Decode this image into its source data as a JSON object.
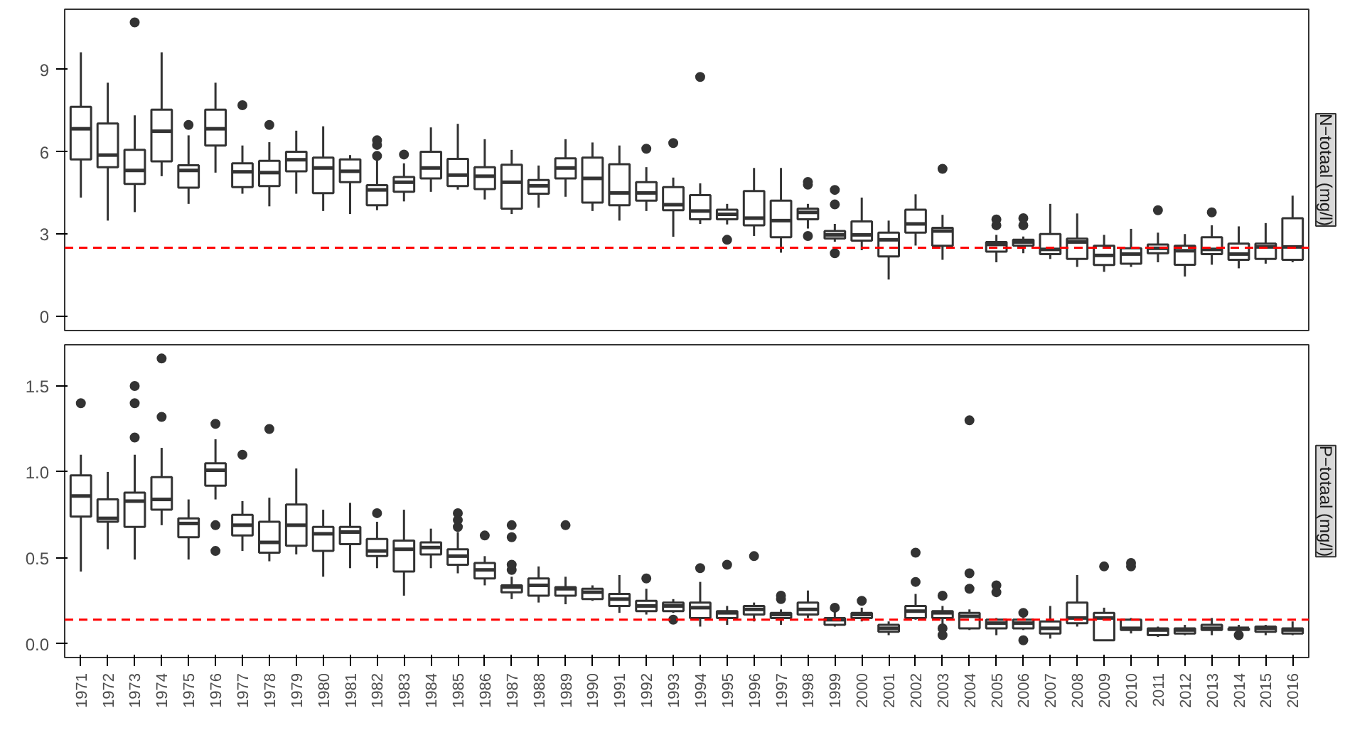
{
  "chart_data": [
    {
      "type": "box",
      "title": "N−totaal (mg/l)",
      "tick_labels": "y",
      "ylim": [
        -0.52,
        11.2
      ],
      "yticks": [
        0,
        3,
        6,
        9
      ],
      "categories": [
        "1971",
        "1972",
        "1973",
        "1974",
        "1975",
        "1976",
        "1977",
        "1978",
        "1979",
        "1980",
        "1981",
        "1982",
        "1983",
        "1984",
        "1985",
        "1986",
        "1987",
        "1988",
        "1989",
        "1990",
        "1991",
        "1992",
        "1993",
        "1994",
        "1995",
        "1996",
        "1997",
        "1998",
        "1999",
        "2000",
        "2001",
        "2002",
        "2003",
        "2004",
        "2005",
        "2006",
        "2007",
        "2008",
        "2009",
        "2010",
        "2011",
        "2012",
        "2013",
        "2014",
        "2015",
        "2016"
      ],
      "ref_lines": [
        {
          "axis": "y",
          "value": 2.5,
          "color": "#ff0000",
          "line_style": "dashed"
        }
      ],
      "boxes": [
        {
          "low": 4.33,
          "q1": 5.72,
          "median": 6.84,
          "q3": 7.64,
          "high": 9.63
        },
        {
          "low": 3.49,
          "q1": 5.44,
          "median": 5.88,
          "q3": 7.03,
          "high": 8.52
        },
        {
          "low": 3.8,
          "q1": 4.83,
          "median": 5.32,
          "q3": 6.07,
          "high": 7.33,
          "outliers": [
            10.72
          ]
        },
        {
          "low": 5.11,
          "q1": 5.65,
          "median": 6.75,
          "q3": 7.54,
          "high": 9.63
        },
        {
          "low": 4.1,
          "q1": 4.69,
          "median": 5.32,
          "q3": 5.51,
          "high": 6.6,
          "outliers": [
            6.98
          ]
        },
        {
          "low": 5.24,
          "q1": 6.23,
          "median": 6.84,
          "q3": 7.54,
          "high": 8.52
        },
        {
          "low": 4.47,
          "q1": 4.71,
          "median": 5.27,
          "q3": 5.58,
          "high": 6.23,
          "outliers": [
            7.7
          ]
        },
        {
          "low": 4.01,
          "q1": 4.75,
          "median": 5.24,
          "q3": 5.67,
          "high": 6.35,
          "outliers": [
            6.98
          ]
        },
        {
          "low": 4.47,
          "q1": 5.29,
          "median": 5.71,
          "q3": 6.0,
          "high": 6.77
        },
        {
          "low": 3.84,
          "q1": 4.49,
          "median": 5.41,
          "q3": 5.79,
          "high": 6.93
        },
        {
          "low": 3.73,
          "q1": 4.89,
          "median": 5.29,
          "q3": 5.72,
          "high": 5.88
        },
        {
          "low": 3.87,
          "q1": 4.05,
          "median": 4.61,
          "q3": 4.78,
          "high": 5.72,
          "outliers": [
            5.85,
            6.25,
            6.42
          ]
        },
        {
          "low": 4.19,
          "q1": 4.54,
          "median": 4.89,
          "q3": 5.08,
          "high": 5.58,
          "outliers": [
            5.9
          ]
        },
        {
          "low": 4.54,
          "q1": 5.03,
          "median": 5.41,
          "q3": 6.0,
          "high": 6.89
        },
        {
          "low": 4.62,
          "q1": 4.75,
          "median": 5.15,
          "q3": 5.74,
          "high": 7.02
        },
        {
          "low": 4.26,
          "q1": 4.64,
          "median": 5.11,
          "q3": 5.44,
          "high": 6.46
        },
        {
          "low": 3.73,
          "q1": 3.93,
          "median": 4.89,
          "q3": 5.53,
          "high": 6.07
        },
        {
          "low": 3.96,
          "q1": 4.47,
          "median": 4.76,
          "q3": 4.97,
          "high": 5.5
        },
        {
          "low": 4.36,
          "q1": 5.03,
          "median": 5.41,
          "q3": 5.76,
          "high": 6.46
        },
        {
          "low": 3.84,
          "q1": 4.15,
          "median": 5.03,
          "q3": 5.79,
          "high": 6.34
        },
        {
          "low": 3.49,
          "q1": 4.05,
          "median": 4.5,
          "q3": 5.55,
          "high": 6.23
        },
        {
          "low": 3.84,
          "q1": 4.22,
          "median": 4.5,
          "q3": 4.89,
          "high": 5.44,
          "outliers": [
            6.11
          ]
        },
        {
          "low": 2.9,
          "q1": 3.87,
          "median": 4.07,
          "q3": 4.71,
          "high": 5.06,
          "outliers": [
            6.32
          ]
        },
        {
          "low": 3.37,
          "q1": 3.54,
          "median": 3.84,
          "q3": 4.42,
          "high": 4.85,
          "outliers": [
            8.73
          ]
        },
        {
          "low": 3.35,
          "q1": 3.54,
          "median": 3.72,
          "q3": 3.89,
          "high": 4.1,
          "outliers": [
            2.79
          ]
        },
        {
          "low": 2.93,
          "q1": 3.32,
          "median": 3.58,
          "q3": 4.57,
          "high": 5.41
        },
        {
          "low": 2.32,
          "q1": 2.88,
          "median": 3.49,
          "q3": 4.22,
          "high": 5.41
        },
        {
          "low": 3.2,
          "q1": 3.54,
          "median": 3.79,
          "q3": 3.93,
          "high": 4.1,
          "outliers": [
            4.8,
            4.9,
            2.93
          ]
        },
        {
          "low": 2.72,
          "q1": 2.84,
          "median": 2.97,
          "q3": 3.11,
          "high": 3.37,
          "outliers": [
            4.61,
            4.08,
            2.3
          ]
        },
        {
          "low": 2.41,
          "q1": 2.76,
          "median": 2.97,
          "q3": 3.46,
          "high": 4.33
        },
        {
          "low": 1.34,
          "q1": 2.18,
          "median": 2.79,
          "q3": 3.05,
          "high": 3.49
        },
        {
          "low": 2.58,
          "q1": 3.05,
          "median": 3.37,
          "q3": 3.89,
          "high": 4.45
        },
        {
          "low": 2.06,
          "q1": 2.57,
          "median": 3.11,
          "q3": 3.23,
          "high": 3.7,
          "outliers": [
            5.38
          ]
        },
        null,
        {
          "low": 1.97,
          "q1": 2.36,
          "median": 2.62,
          "q3": 2.71,
          "high": 2.97,
          "outliers": [
            3.32,
            3.53
          ]
        },
        {
          "low": 2.3,
          "q1": 2.58,
          "median": 2.71,
          "q3": 2.79,
          "high": 2.91,
          "outliers": [
            3.32,
            3.58
          ]
        },
        {
          "low": 2.09,
          "q1": 2.27,
          "median": 2.44,
          "q3": 3.0,
          "high": 4.1
        },
        {
          "low": 1.8,
          "q1": 2.09,
          "median": 2.71,
          "q3": 2.83,
          "high": 3.75
        },
        {
          "low": 1.62,
          "q1": 1.87,
          "median": 2.22,
          "q3": 2.57,
          "high": 2.97
        },
        {
          "low": 1.8,
          "q1": 1.92,
          "median": 2.27,
          "q3": 2.48,
          "high": 3.19
        },
        {
          "low": 1.97,
          "q1": 2.3,
          "median": 2.48,
          "q3": 2.62,
          "high": 3.05,
          "outliers": [
            3.87
          ]
        },
        {
          "low": 1.45,
          "q1": 1.88,
          "median": 2.39,
          "q3": 2.57,
          "high": 3.0
        },
        {
          "low": 1.88,
          "q1": 2.27,
          "median": 2.44,
          "q3": 2.88,
          "high": 3.32,
          "outliers": [
            3.79
          ]
        },
        {
          "low": 1.75,
          "q1": 2.06,
          "median": 2.27,
          "q3": 2.65,
          "high": 3.28
        },
        {
          "low": 1.92,
          "q1": 2.09,
          "median": 2.53,
          "q3": 2.65,
          "high": 3.4
        },
        {
          "low": 1.97,
          "q1": 2.06,
          "median": 2.53,
          "q3": 3.58,
          "high": 4.4
        }
      ]
    },
    {
      "type": "box",
      "title": "P−totaal (mg/l)",
      "ylim": [
        -0.08,
        1.74
      ],
      "yticks": [
        {
          "value": 0,
          "label": "0.0"
        },
        {
          "value": 0.5,
          "label": "0.5"
        },
        {
          "value": 1,
          "label": "1.0"
        },
        {
          "value": 1.5,
          "label": "1.5"
        }
      ],
      "categories": [
        "1971",
        "1972",
        "1973",
        "1974",
        "1975",
        "1976",
        "1977",
        "1978",
        "1979",
        "1980",
        "1981",
        "1982",
        "1983",
        "1984",
        "1985",
        "1986",
        "1987",
        "1988",
        "1989",
        "1990",
        "1991",
        "1992",
        "1993",
        "1994",
        "1995",
        "1996",
        "1997",
        "1998",
        "1999",
        "2000",
        "2001",
        "2002",
        "2003",
        "2004",
        "2005",
        "2006",
        "2007",
        "2008",
        "2009",
        "2010",
        "2011",
        "2012",
        "2013",
        "2014",
        "2015",
        "2016"
      ],
      "ref_lines": [
        {
          "axis": "y",
          "value": 0.14,
          "color": "#ff0000",
          "line_style": "dashed"
        }
      ],
      "boxes": [
        {
          "low": 0.42,
          "q1": 0.74,
          "median": 0.86,
          "q3": 0.98,
          "high": 1.1,
          "outliers": [
            1.4
          ]
        },
        {
          "low": 0.55,
          "q1": 0.71,
          "median": 0.73,
          "q3": 0.84,
          "high": 1.0
        },
        {
          "low": 0.49,
          "q1": 0.68,
          "median": 0.83,
          "q3": 0.88,
          "high": 1.1,
          "outliers": [
            1.2,
            1.4,
            1.5
          ]
        },
        {
          "low": 0.69,
          "q1": 0.78,
          "median": 0.84,
          "q3": 0.97,
          "high": 1.14,
          "outliers": [
            1.32,
            1.66
          ]
        },
        {
          "low": 0.49,
          "q1": 0.62,
          "median": 0.7,
          "q3": 0.73,
          "high": 0.84
        },
        {
          "low": 0.84,
          "q1": 0.92,
          "median": 1.01,
          "q3": 1.05,
          "high": 1.19,
          "outliers": [
            1.28,
            0.69,
            0.54
          ]
        },
        {
          "low": 0.54,
          "q1": 0.63,
          "median": 0.69,
          "q3": 0.75,
          "high": 0.83,
          "outliers": [
            1.1
          ]
        },
        {
          "low": 0.48,
          "q1": 0.53,
          "median": 0.59,
          "q3": 0.71,
          "high": 0.85,
          "outliers": [
            1.25
          ]
        },
        {
          "low": 0.52,
          "q1": 0.57,
          "median": 0.69,
          "q3": 0.81,
          "high": 1.02
        },
        {
          "low": 0.39,
          "q1": 0.54,
          "median": 0.64,
          "q3": 0.68,
          "high": 0.78
        },
        {
          "low": 0.44,
          "q1": 0.58,
          "median": 0.65,
          "q3": 0.68,
          "high": 0.82
        },
        {
          "low": 0.44,
          "q1": 0.51,
          "median": 0.54,
          "q3": 0.61,
          "high": 0.71,
          "outliers": [
            0.76
          ]
        },
        {
          "low": 0.28,
          "q1": 0.42,
          "median": 0.55,
          "q3": 0.6,
          "high": 0.78
        },
        {
          "low": 0.44,
          "q1": 0.52,
          "median": 0.56,
          "q3": 0.59,
          "high": 0.67
        },
        {
          "low": 0.41,
          "q1": 0.46,
          "median": 0.51,
          "q3": 0.55,
          "high": 0.65,
          "outliers": [
            0.68,
            0.72,
            0.76
          ]
        },
        {
          "low": 0.34,
          "q1": 0.38,
          "median": 0.43,
          "q3": 0.47,
          "high": 0.51,
          "outliers": [
            0.63
          ]
        },
        {
          "low": 0.26,
          "q1": 0.3,
          "median": 0.33,
          "q3": 0.34,
          "high": 0.39,
          "outliers": [
            0.43,
            0.46,
            0.62,
            0.69
          ]
        },
        {
          "low": 0.24,
          "q1": 0.28,
          "median": 0.34,
          "q3": 0.38,
          "high": 0.45
        },
        {
          "low": 0.23,
          "q1": 0.28,
          "median": 0.32,
          "q3": 0.33,
          "high": 0.39,
          "outliers": [
            0.69
          ]
        },
        {
          "low": 0.25,
          "q1": 0.26,
          "median": 0.3,
          "q3": 0.32,
          "high": 0.34
        },
        {
          "low": 0.18,
          "q1": 0.22,
          "median": 0.26,
          "q3": 0.29,
          "high": 0.4
        },
        {
          "low": 0.17,
          "q1": 0.19,
          "median": 0.22,
          "q3": 0.25,
          "high": 0.32,
          "outliers": [
            0.38
          ]
        },
        {
          "low": 0.18,
          "q1": 0.19,
          "median": 0.22,
          "q3": 0.24,
          "high": 0.26,
          "outliers": [
            0.14
          ]
        },
        {
          "low": 0.1,
          "q1": 0.15,
          "median": 0.21,
          "q3": 0.24,
          "high": 0.36,
          "outliers": [
            0.44
          ]
        },
        {
          "low": 0.11,
          "q1": 0.15,
          "median": 0.18,
          "q3": 0.19,
          "high": 0.22,
          "outliers": [
            0.46
          ]
        },
        {
          "low": 0.13,
          "q1": 0.17,
          "median": 0.2,
          "q3": 0.22,
          "high": 0.24,
          "outliers": [
            0.51
          ]
        },
        {
          "low": 0.11,
          "q1": 0.15,
          "median": 0.17,
          "q3": 0.18,
          "high": 0.2,
          "outliers": [
            0.26,
            0.28
          ]
        },
        {
          "low": 0.15,
          "q1": 0.17,
          "median": 0.2,
          "q3": 0.24,
          "high": 0.31
        },
        {
          "low": 0.1,
          "q1": 0.11,
          "median": 0.14,
          "q3": 0.15,
          "high": 0.19,
          "outliers": [
            0.21
          ]
        },
        {
          "low": 0.13,
          "q1": 0.15,
          "median": 0.17,
          "q3": 0.18,
          "high": 0.21,
          "outliers": [
            0.25
          ]
        },
        {
          "low": 0.05,
          "q1": 0.07,
          "median": 0.09,
          "q3": 0.11,
          "high": 0.13
        },
        {
          "low": 0.14,
          "q1": 0.15,
          "median": 0.19,
          "q3": 0.22,
          "high": 0.29,
          "outliers": [
            0.36,
            0.53
          ]
        },
        {
          "low": 0.11,
          "q1": 0.15,
          "median": 0.18,
          "q3": 0.19,
          "high": 0.22,
          "outliers": [
            0.28,
            0.09,
            0.05
          ]
        },
        {
          "low": 0.08,
          "q1": 0.09,
          "median": 0.16,
          "q3": 0.18,
          "high": 0.2,
          "outliers": [
            0.32,
            0.41,
            1.3
          ]
        },
        {
          "low": 0.05,
          "q1": 0.09,
          "median": 0.12,
          "q3": 0.14,
          "high": 0.15,
          "outliers": [
            0.3,
            0.34
          ]
        },
        {
          "low": 0.08,
          "q1": 0.09,
          "median": 0.12,
          "q3": 0.14,
          "high": 0.15,
          "outliers": [
            0.18,
            0.02
          ]
        },
        {
          "low": 0.03,
          "q1": 0.06,
          "median": 0.09,
          "q3": 0.13,
          "high": 0.22
        },
        {
          "low": 0.1,
          "q1": 0.12,
          "median": 0.15,
          "q3": 0.24,
          "high": 0.4
        },
        {
          "low": 0.02,
          "q1": 0.02,
          "median": 0.15,
          "q3": 0.18,
          "high": 0.21,
          "outliers": [
            0.45
          ]
        },
        {
          "low": 0.06,
          "q1": 0.08,
          "median": 0.09,
          "q3": 0.14,
          "high": 0.15,
          "outliers": [
            0.45,
            0.47
          ]
        },
        {
          "low": 0.04,
          "q1": 0.05,
          "median": 0.08,
          "q3": 0.09,
          "high": 0.1
        },
        {
          "low": 0.05,
          "q1": 0.06,
          "median": 0.08,
          "q3": 0.09,
          "high": 0.11
        },
        {
          "low": 0.05,
          "q1": 0.08,
          "median": 0.09,
          "q3": 0.11,
          "high": 0.15
        },
        {
          "low": 0.07,
          "q1": 0.08,
          "median": 0.09,
          "q3": 0.09,
          "high": 0.11,
          "outliers": [
            0.05
          ]
        },
        {
          "low": 0.05,
          "q1": 0.07,
          "median": 0.09,
          "q3": 0.1,
          "high": 0.11
        },
        {
          "low": 0.05,
          "q1": 0.06,
          "median": 0.08,
          "q3": 0.09,
          "high": 0.13
        }
      ]
    }
  ]
}
